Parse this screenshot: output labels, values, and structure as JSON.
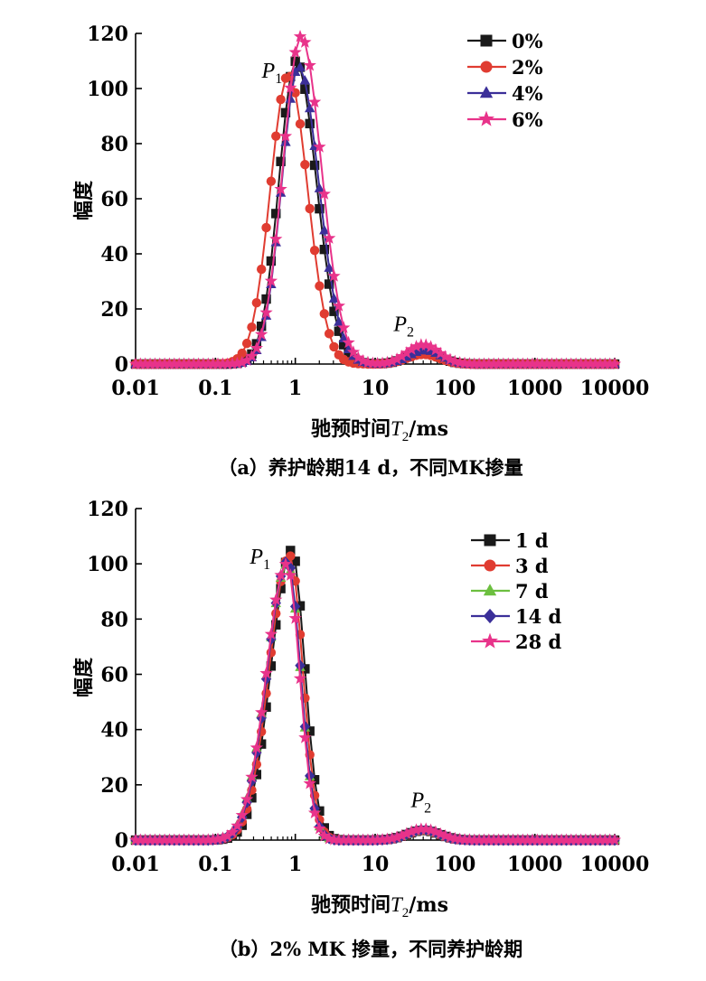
{
  "chart_data": [
    {
      "id": "a",
      "type": "line",
      "caption": "（a）养护龄期14 d，不同MK掺量",
      "xlabel": {
        "main": "驰预时间",
        "var": "T",
        "sub": "2",
        "unit": "/ms"
      },
      "ylabel": "幅度",
      "xscale": "log",
      "xlim": [
        0.01,
        10000
      ],
      "ylim": [
        0,
        120
      ],
      "xticks": [
        "0.01",
        "0.1",
        "1",
        "10",
        "100",
        "1000",
        "10000"
      ],
      "yticks": [
        "0",
        "20",
        "40",
        "60",
        "80",
        "100",
        "120"
      ],
      "legend_position": "top-right",
      "peaks": [
        {
          "main": "P",
          "sub": "1",
          "x": 0.38,
          "y": 104
        },
        {
          "main": "P",
          "sub": "2",
          "x": 17,
          "y": 12
        }
      ],
      "series": [
        {
          "name": "0%",
          "color": "#1a1a1a",
          "marker": "square",
          "peak_x": 1.02,
          "peak_y": 110,
          "w1": 0.3,
          "w2": 0.36,
          "p2_x": 40,
          "p2_y": 4.5
        },
        {
          "name": "2%",
          "color": "#e03c31",
          "marker": "circle",
          "peak_x": 0.82,
          "peak_y": 105,
          "w1": 0.32,
          "w2": 0.34,
          "p2_x": 40,
          "p2_y": 3.5
        },
        {
          "name": "4%",
          "color": "#3b2f99",
          "marker": "triangle",
          "peak_x": 1.1,
          "peak_y": 108,
          "w1": 0.3,
          "w2": 0.36,
          "p2_x": 42,
          "p2_y": 5
        },
        {
          "name": "6%",
          "color": "#e8338a",
          "marker": "star",
          "peak_x": 1.18,
          "peak_y": 119,
          "w1": 0.32,
          "w2": 0.36,
          "p2_x": 40,
          "p2_y": 7
        }
      ]
    },
    {
      "id": "b",
      "type": "line",
      "caption": "（b）2% MK 掺量，不同养护龄期",
      "xlabel": {
        "main": "驰预时间",
        "var": "T",
        "sub": "2",
        "unit": "/ms"
      },
      "ylabel": "幅度",
      "xscale": "log",
      "xlim": [
        0.01,
        10000
      ],
      "ylim": [
        0,
        120
      ],
      "xticks": [
        "0.01",
        "0.1",
        "1",
        "10",
        "100",
        "1000",
        "10000"
      ],
      "yticks": [
        "0",
        "20",
        "40",
        "60",
        "80",
        "100",
        "120"
      ],
      "legend_position": "top-right",
      "peaks": [
        {
          "main": "P",
          "sub": "1",
          "x": 0.27,
          "y": 100
        },
        {
          "main": "P",
          "sub": "2",
          "x": 28,
          "y": 12
        }
      ],
      "series": [
        {
          "name": "1 d",
          "color": "#1a1a1a",
          "marker": "square",
          "peak_x": 0.9,
          "peak_y": 105,
          "w1": 0.36,
          "w2": 0.23,
          "p2_x": 40,
          "p2_y": 3.5
        },
        {
          "name": "3 d",
          "color": "#e03c31",
          "marker": "circle",
          "peak_x": 0.85,
          "peak_y": 103,
          "w1": 0.36,
          "w2": 0.23,
          "p2_x": 40,
          "p2_y": 3.5
        },
        {
          "name": "7 d",
          "color": "#6cbf3f",
          "marker": "triangle",
          "peak_x": 0.8,
          "peak_y": 100,
          "w1": 0.37,
          "w2": 0.23,
          "p2_x": 40,
          "p2_y": 3.5
        },
        {
          "name": "14 d",
          "color": "#3b2f99",
          "marker": "diamond",
          "peak_x": 0.8,
          "peak_y": 101,
          "w1": 0.36,
          "w2": 0.23,
          "p2_x": 40,
          "p2_y": 3.8
        },
        {
          "name": "28 d",
          "color": "#e8338a",
          "marker": "star",
          "peak_x": 0.78,
          "peak_y": 100,
          "w1": 0.36,
          "w2": 0.23,
          "p2_x": 40,
          "p2_y": 4
        }
      ]
    }
  ]
}
